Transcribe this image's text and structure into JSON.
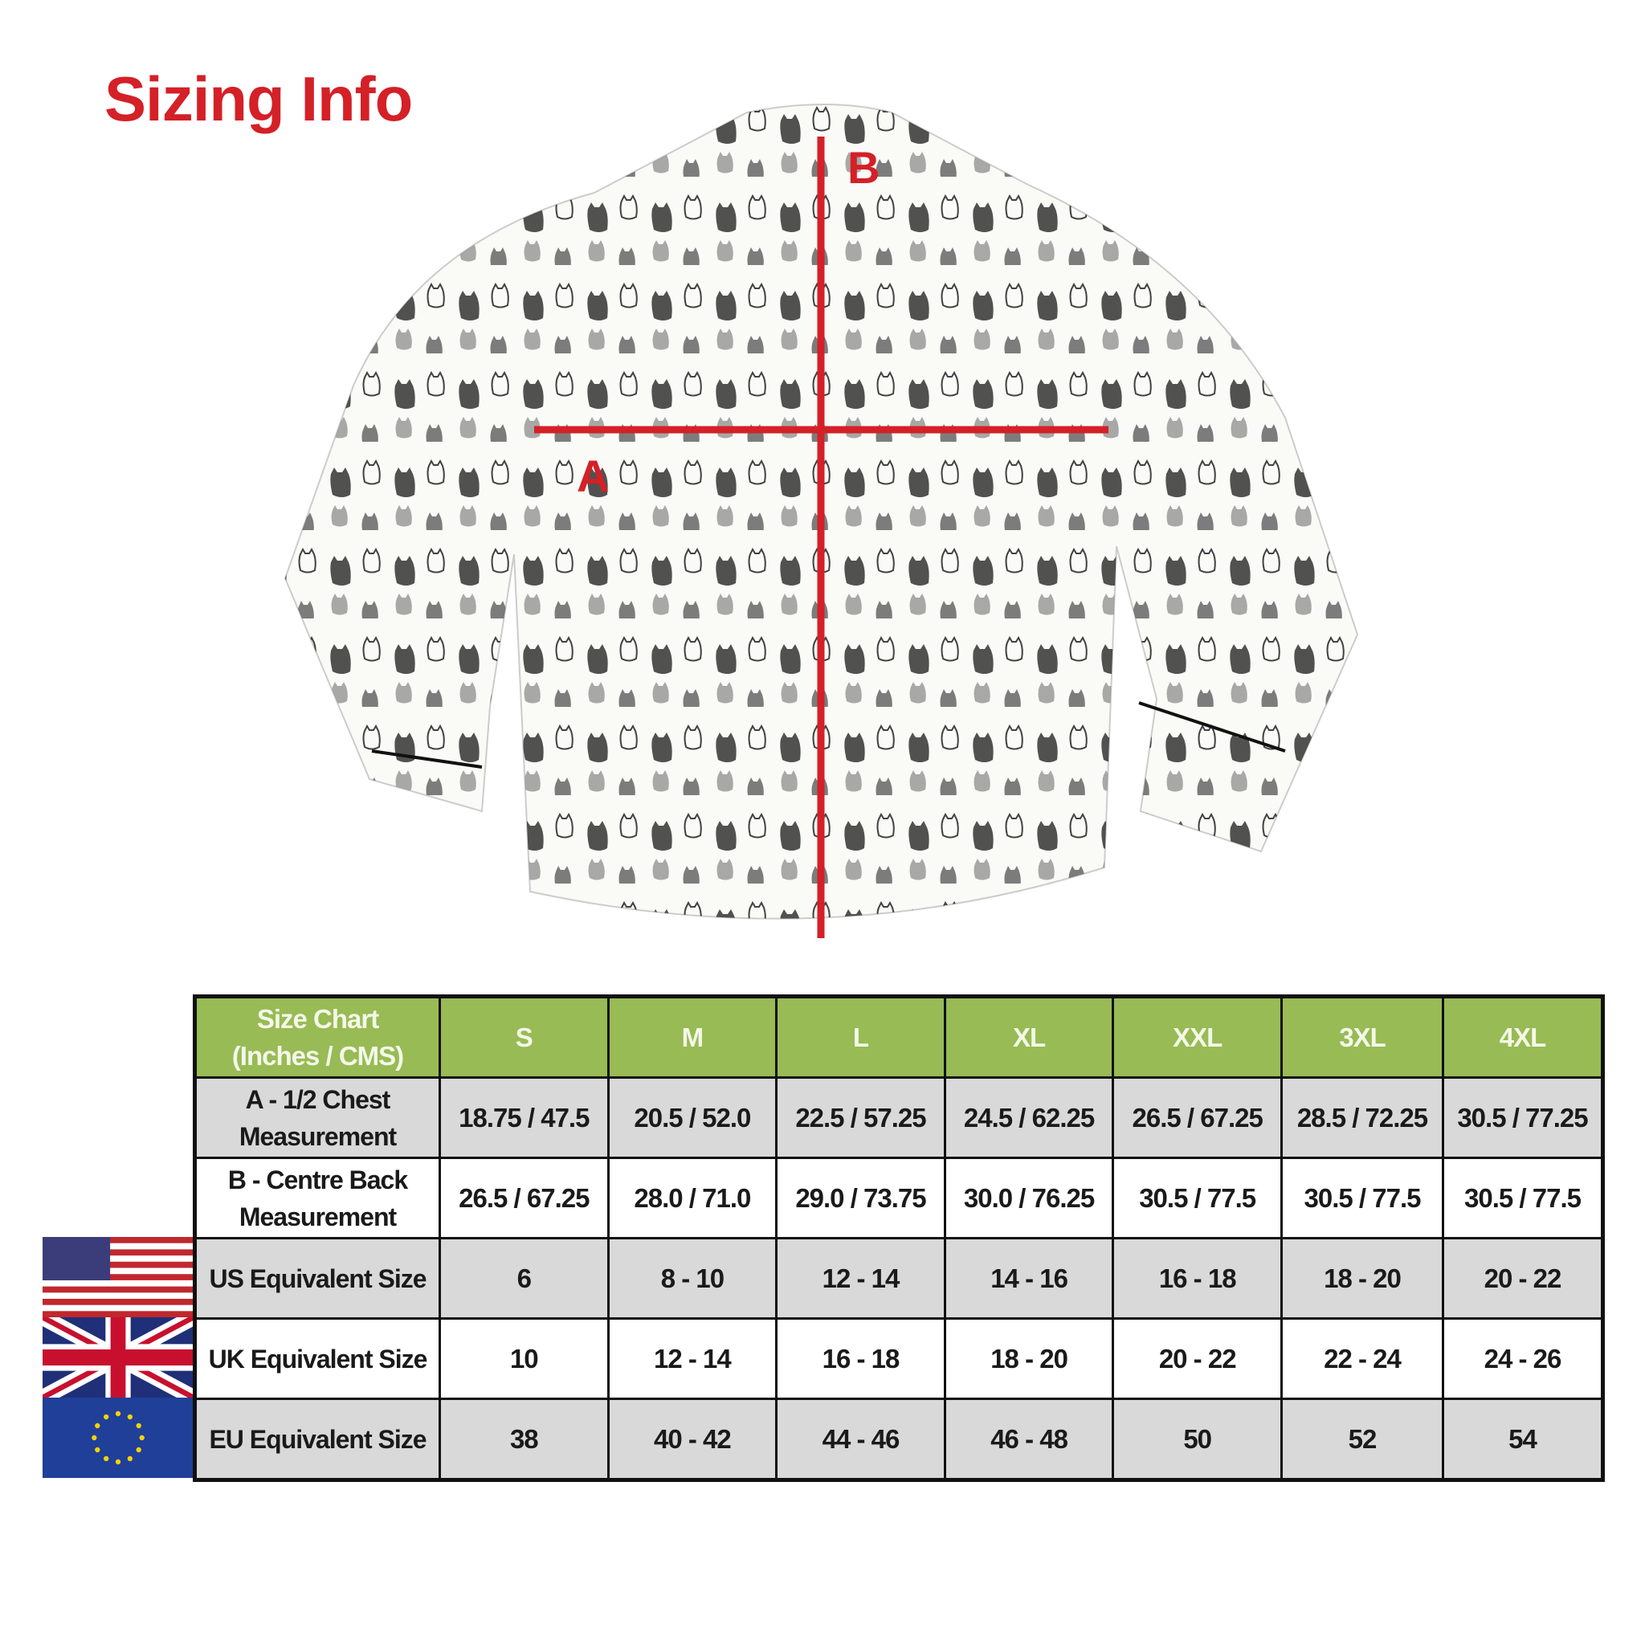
{
  "title": "Sizing Info",
  "diagram": {
    "label_a": "A",
    "label_b": "B",
    "line_color": "#d42027"
  },
  "flags": [
    "us-flag-icon",
    "uk-flag-icon",
    "eu-flag-icon"
  ],
  "table": {
    "header": [
      "Size Chart\n(Inches / CMS)",
      "S",
      "M",
      "L",
      "XL",
      "XXL",
      "3XL",
      "4XL"
    ],
    "header_color": "#98bb55",
    "rows": [
      {
        "label": "A - 1/2 Chest Measurement",
        "values": [
          "18.75 / 47.5",
          "20.5 / 52.0",
          "22.5 / 57.25",
          "24.5 / 62.25",
          "26.5 / 67.25",
          "28.5 / 72.25",
          "30.5 / 77.25"
        ]
      },
      {
        "label": "B - Centre Back Measurement",
        "values": [
          "26.5 / 67.25",
          "28.0 / 71.0",
          "29.0 / 73.75",
          "30.0 / 76.25",
          "30.5 / 77.5",
          "30.5 / 77.5",
          "30.5 / 77.5"
        ]
      },
      {
        "label": "US Equivalent Size",
        "values": [
          "6",
          "8 - 10",
          "12 - 14",
          "14 - 16",
          "16 - 18",
          "18 - 20",
          "20 - 22"
        ]
      },
      {
        "label": "UK Equivalent Size",
        "values": [
          "10",
          "12 - 14",
          "16 - 18",
          "18 - 20",
          "20 - 22",
          "22 - 24",
          "24 - 26"
        ]
      },
      {
        "label": "EU Equivalent Size",
        "values": [
          "38",
          "40 - 42",
          "44 - 46",
          "46 - 48",
          "50",
          "52",
          "54"
        ]
      }
    ]
  }
}
